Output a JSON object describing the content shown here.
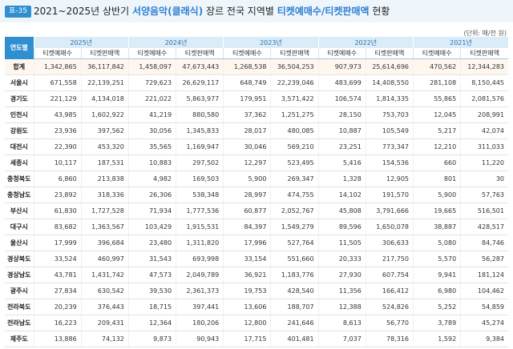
{
  "header": {
    "badge": "표-35",
    "title_prefix": "2021~2025년 상반기",
    "title_highlight1": "서양음악(클래식)",
    "title_mid": "장르 전국 지역별",
    "title_highlight2": "티켓예매수/티켓판매액",
    "title_suffix": "현황",
    "unit": "(단위: 매/천 원)"
  },
  "table": {
    "corner": "연도별",
    "years": [
      "2025년",
      "2024년",
      "2023년",
      "2022년",
      "2021년"
    ],
    "sub_headers": [
      "티켓예매수",
      "티켓판매액"
    ],
    "rows": [
      {
        "region": "합계",
        "values": [
          "1,342,865",
          "36,117,842",
          "1,458,097",
          "47,673,443",
          "1,268,538",
          "36,504,253",
          "907,973",
          "25,614,696",
          "470,562",
          "12,344,283"
        ]
      },
      {
        "region": "서울시",
        "values": [
          "671,558",
          "22,139,251",
          "729,623",
          "26,629,117",
          "648,749",
          "22,239,046",
          "483,699",
          "14,408,550",
          "281,108",
          "8,150,445"
        ]
      },
      {
        "region": "경기도",
        "values": [
          "221,129",
          "4,134,018",
          "221,022",
          "5,863,977",
          "179,951",
          "3,571,422",
          "106,574",
          "1,814,335",
          "55,865",
          "2,081,576"
        ]
      },
      {
        "region": "인천시",
        "values": [
          "43,985",
          "1,602,922",
          "41,219",
          "880,580",
          "37,362",
          "1,251,275",
          "28,150",
          "753,703",
          "12,045",
          "208,991"
        ]
      },
      {
        "region": "강원도",
        "values": [
          "23,936",
          "397,562",
          "30,056",
          "1,345,833",
          "28,017",
          "480,085",
          "10,887",
          "105,549",
          "5,217",
          "42,074"
        ]
      },
      {
        "region": "대전시",
        "values": [
          "22,390",
          "453,320",
          "35,565",
          "1,169,947",
          "30,046",
          "569,210",
          "23,251",
          "773,347",
          "12,210",
          "311,033"
        ]
      },
      {
        "region": "세종시",
        "values": [
          "10,117",
          "187,531",
          "10,883",
          "297,502",
          "12,297",
          "523,495",
          "5,416",
          "154,536",
          "660",
          "11,220"
        ]
      },
      {
        "region": "충청북도",
        "values": [
          "6,860",
          "213,838",
          "4,982",
          "169,503",
          "5,900",
          "269,347",
          "1,328",
          "12,905",
          "801",
          "30"
        ]
      },
      {
        "region": "충청남도",
        "values": [
          "23,892",
          "318,336",
          "26,306",
          "538,348",
          "28,997",
          "474,755",
          "14,102",
          "191,570",
          "5,900",
          "57,763"
        ]
      },
      {
        "region": "부산시",
        "values": [
          "61,830",
          "1,727,528",
          "71,934",
          "1,777,536",
          "60,877",
          "2,052,767",
          "45,808",
          "3,791,666",
          "19,665",
          "516,501"
        ]
      },
      {
        "region": "대구시",
        "values": [
          "83,682",
          "1,363,567",
          "103,429",
          "1,915,531",
          "84,397",
          "1,549,279",
          "89,596",
          "1,650,078",
          "38,887",
          "428,517"
        ]
      },
      {
        "region": "울산시",
        "values": [
          "17,999",
          "396,684",
          "23,480",
          "1,311,820",
          "17,996",
          "527,764",
          "11,505",
          "306,633",
          "5,080",
          "84,746"
        ]
      },
      {
        "region": "경상북도",
        "values": [
          "33,524",
          "460,997",
          "31,543",
          "693,998",
          "33,154",
          "551,660",
          "20,333",
          "217,750",
          "5,570",
          "56,287"
        ]
      },
      {
        "region": "경상남도",
        "values": [
          "43,781",
          "1,431,742",
          "47,573",
          "2,049,789",
          "36,921",
          "1,183,776",
          "27,930",
          "607,754",
          "9,941",
          "181,124"
        ]
      },
      {
        "region": "광주시",
        "values": [
          "27,834",
          "630,542",
          "39,530",
          "2,361,373",
          "19,753",
          "428,540",
          "11,356",
          "166,412",
          "6,980",
          "104,462"
        ]
      },
      {
        "region": "전라북도",
        "values": [
          "20,239",
          "376,443",
          "18,715",
          "397,441",
          "13,606",
          "188,707",
          "12,388",
          "524,826",
          "5,252",
          "54,859"
        ]
      },
      {
        "region": "전라남도",
        "values": [
          "16,223",
          "209,431",
          "12,364",
          "180,206",
          "12,800",
          "241,646",
          "8,613",
          "56,770",
          "3,789",
          "45,274"
        ]
      },
      {
        "region": "제주도",
        "values": [
          "13,886",
          "74,132",
          "9,873",
          "90,943",
          "17,715",
          "401,481",
          "7,037",
          "78,316",
          "1,592",
          "9,384"
        ]
      }
    ]
  }
}
